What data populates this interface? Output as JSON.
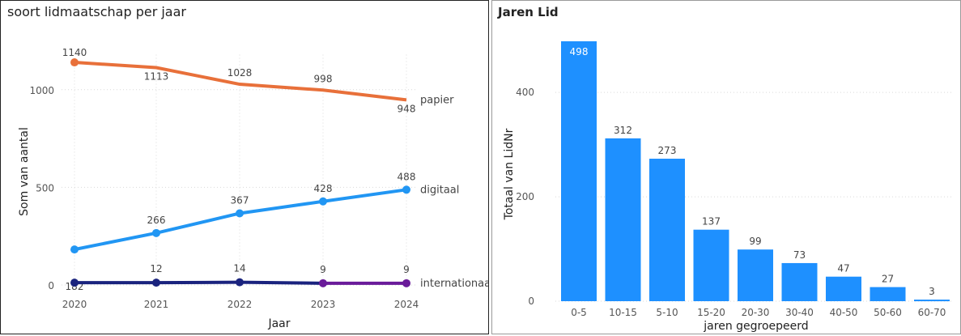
{
  "chart_data": [
    {
      "type": "line",
      "title": "soort lidmaatschap per jaar",
      "xlabel": "Jaar",
      "ylabel": "Som van aantal",
      "x": [
        "2020",
        "2021",
        "2022",
        "2023",
        "2024"
      ],
      "yticks": [
        "0",
        "500",
        "1000"
      ],
      "ylim": [
        0,
        1200
      ],
      "grid": true,
      "series": [
        {
          "name": "papier",
          "values": [
            1140,
            1113,
            1028,
            998,
            948
          ],
          "color": "#e8703a"
        },
        {
          "name": "digitaal",
          "values": [
            182,
            266,
            367,
            428,
            488
          ],
          "color": "#2196f3"
        },
        {
          "name": "internationaal",
          "values": [
            12,
            12,
            14,
            9,
            9
          ],
          "color": "#1a237e",
          "highlight_color": "#6a1b9a"
        }
      ],
      "data_labels": {
        "papier": [
          "1140",
          "1113",
          "1028",
          "998",
          "948"
        ],
        "digitaal": [
          "182",
          "266",
          "367",
          "428",
          "488"
        ],
        "internationaal": [
          "",
          "12",
          "14",
          "9",
          "9"
        ]
      }
    },
    {
      "type": "bar",
      "title": "Jaren Lid",
      "xlabel": "jaren gegroepeerd",
      "ylabel": "Totaal van LidNr",
      "categories": [
        "0-5",
        "10-15",
        "5-10",
        "15-20",
        "20-30",
        "30-40",
        "40-50",
        "50-60",
        "60-70"
      ],
      "values": [
        498,
        312,
        273,
        137,
        99,
        73,
        47,
        27,
        3
      ],
      "yticks": [
        "0",
        "200",
        "400"
      ],
      "ylim": [
        0,
        500
      ],
      "grid": true,
      "color": "#1e90ff"
    }
  ]
}
